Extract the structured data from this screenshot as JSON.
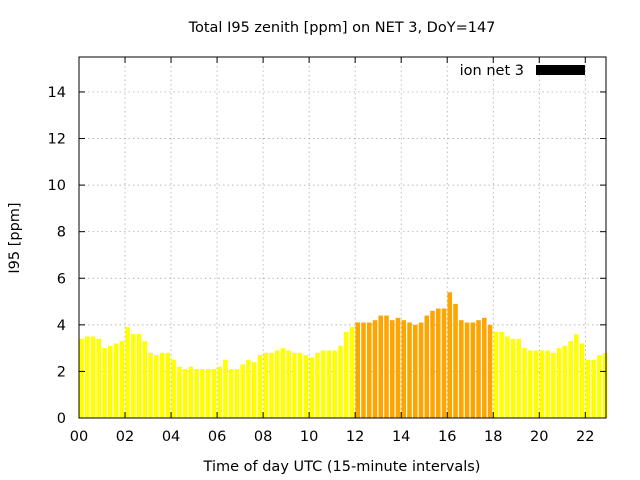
{
  "chart_data": {
    "type": "bar",
    "title": "Total I95 zenith [ppm] on NET 3, DoY=147",
    "xlabel": "Time of day UTC (15-minute intervals)",
    "ylabel": "I95 [ppm]",
    "xlim": [
      0,
      22.9
    ],
    "ylim": [
      0,
      15.5
    ],
    "x_ticks": [
      {
        "value": 0,
        "label": "00"
      },
      {
        "value": 2,
        "label": "02"
      },
      {
        "value": 4,
        "label": "04"
      },
      {
        "value": 6,
        "label": "06"
      },
      {
        "value": 8,
        "label": "08"
      },
      {
        "value": 10,
        "label": "10"
      },
      {
        "value": 12,
        "label": "12"
      },
      {
        "value": 14,
        "label": "14"
      },
      {
        "value": 16,
        "label": "16"
      },
      {
        "value": 18,
        "label": "18"
      },
      {
        "value": 20,
        "label": "20"
      },
      {
        "value": 22,
        "label": "22"
      }
    ],
    "y_ticks": [
      {
        "value": 0,
        "label": "0"
      },
      {
        "value": 2,
        "label": "2"
      },
      {
        "value": 4,
        "label": "4"
      },
      {
        "value": 6,
        "label": "6"
      },
      {
        "value": 8,
        "label": "8"
      },
      {
        "value": 10,
        "label": "10"
      },
      {
        "value": 12,
        "label": "12"
      },
      {
        "value": 14,
        "label": "14"
      }
    ],
    "grid": true,
    "legend": {
      "placement": "top-right",
      "entries": [
        {
          "name": "ion net 3",
          "color": "#000000"
        }
      ]
    },
    "bar_step_hours": 0.25,
    "colors": {
      "low": "#ffff00",
      "medium": "#ffa500",
      "threshold": 4
    },
    "series": [
      {
        "name": "ion net 3",
        "values": [
          3.4,
          3.5,
          3.5,
          3.4,
          3.0,
          3.1,
          3.2,
          3.3,
          3.9,
          3.6,
          3.6,
          3.3,
          2.8,
          2.7,
          2.8,
          2.8,
          2.5,
          2.2,
          2.1,
          2.2,
          2.1,
          2.1,
          2.1,
          2.1,
          2.2,
          2.5,
          2.1,
          2.1,
          2.3,
          2.5,
          2.4,
          2.7,
          2.8,
          2.8,
          2.9,
          3.0,
          2.9,
          2.8,
          2.8,
          2.7,
          2.6,
          2.8,
          2.9,
          2.9,
          2.9,
          3.1,
          3.7,
          3.9,
          4.1,
          4.1,
          4.1,
          4.2,
          4.4,
          4.4,
          4.2,
          4.3,
          4.2,
          4.1,
          4.0,
          4.1,
          4.4,
          4.6,
          4.7,
          4.7,
          5.4,
          4.9,
          4.2,
          4.1,
          4.1,
          4.2,
          4.3,
          4.0,
          3.7,
          3.7,
          3.5,
          3.4,
          3.4,
          3.0,
          2.9,
          2.9,
          2.9,
          2.9,
          2.8,
          3.0,
          3.1,
          3.3,
          3.6,
          3.2,
          2.5,
          2.5,
          2.7,
          2.8
        ]
      }
    ]
  }
}
